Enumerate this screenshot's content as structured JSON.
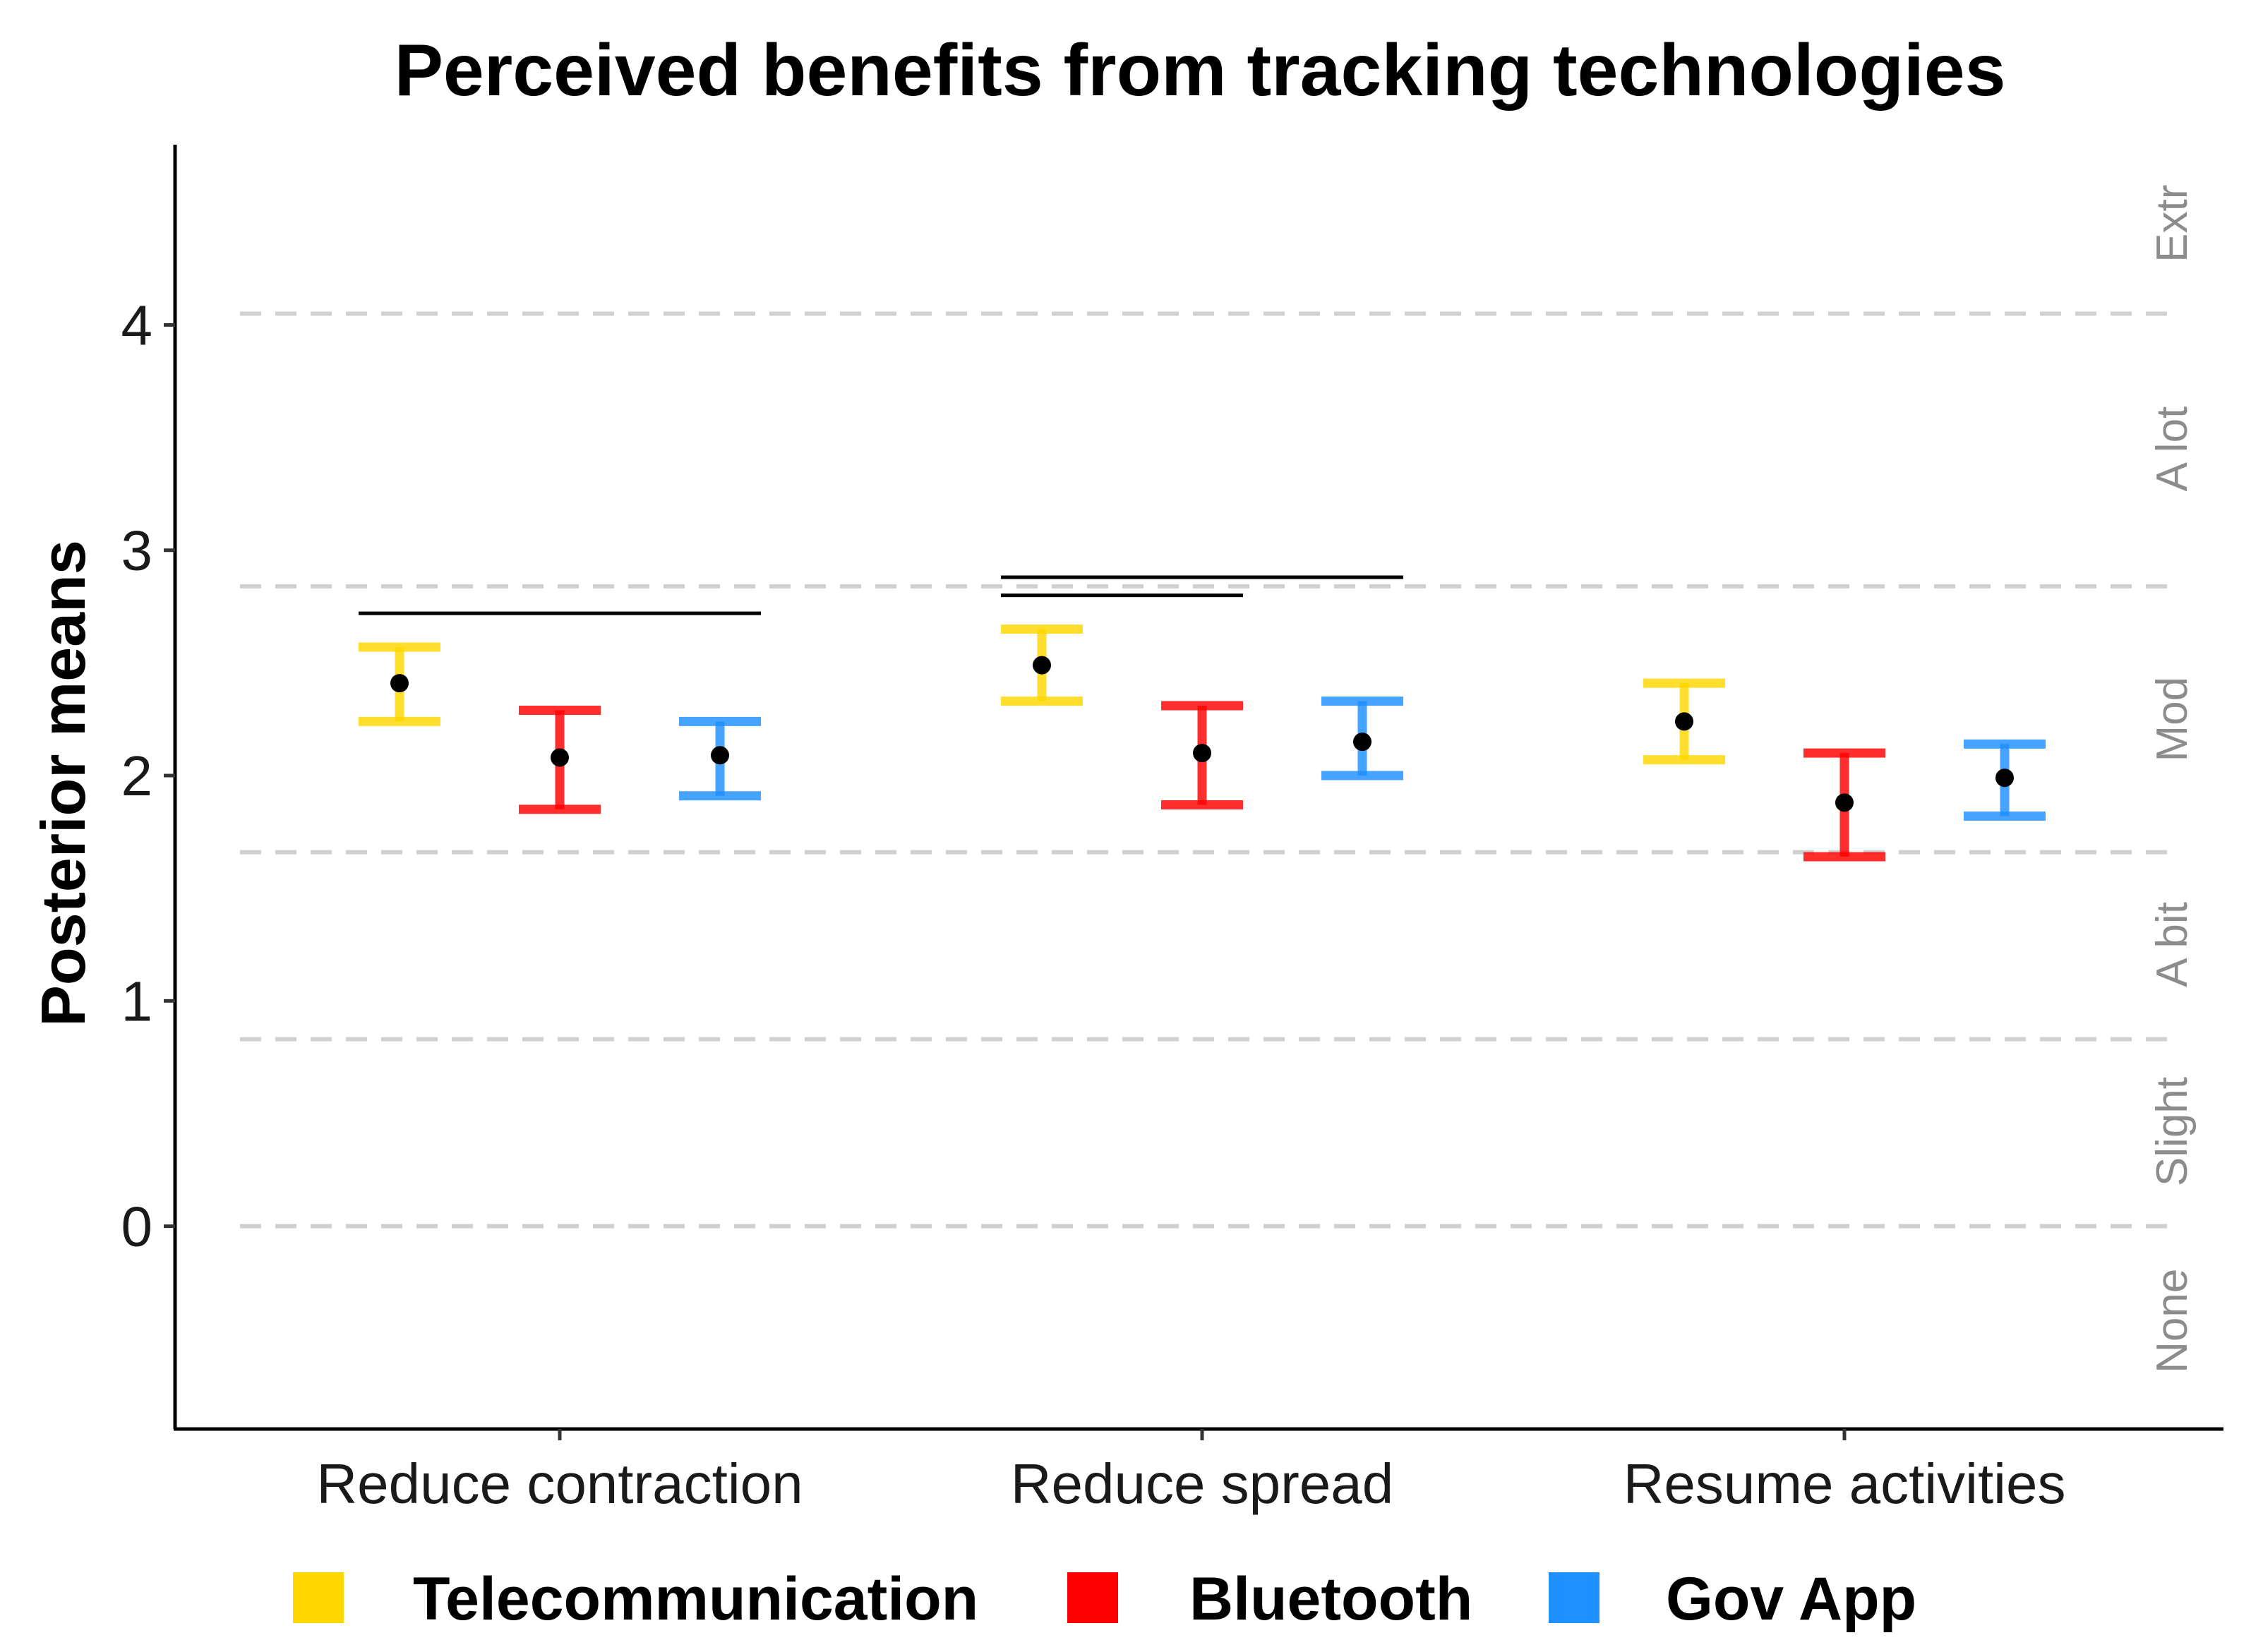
{
  "chart_data": {
    "type": "errorbar",
    "title": "Perceived benefits from tracking technologies",
    "xlabel": "",
    "ylabel": "Posterior means",
    "ylim": [
      -0.9,
      4.8
    ],
    "yticks": [
      "0",
      "1",
      "2",
      "3",
      "4"
    ],
    "categories": [
      "Reduce contraction",
      "Reduce spread",
      "Resume activities"
    ],
    "series": [
      {
        "name": "Telecommunication",
        "color": "#FFD700",
        "means": [
          2.41,
          2.49,
          2.24
        ],
        "lower": [
          2.24,
          2.33,
          2.07
        ],
        "upper": [
          2.57,
          2.65,
          2.41
        ]
      },
      {
        "name": "Bluetooth",
        "color": "#FF0000",
        "means": [
          2.08,
          2.1,
          1.88
        ],
        "lower": [
          1.85,
          1.87,
          1.64
        ],
        "upper": [
          2.29,
          2.31,
          2.1
        ]
      },
      {
        "name": "Gov App",
        "color": "#1E90FF",
        "means": [
          2.09,
          2.15,
          1.99
        ],
        "lower": [
          1.91,
          2.0,
          1.82
        ],
        "upper": [
          2.24,
          2.33,
          2.14
        ]
      }
    ],
    "threshold_lines": [
      0.0,
      0.83,
      1.66,
      2.84,
      4.05
    ],
    "bands": [
      {
        "label": "None",
        "center": -0.42
      },
      {
        "label": "Slight",
        "center": 0.42
      },
      {
        "label": "A bit",
        "center": 1.25
      },
      {
        "label": "Mod",
        "center": 2.25
      },
      {
        "label": "A lot",
        "center": 3.45
      },
      {
        "label": "Extr",
        "center": 4.45
      }
    ],
    "significance_brackets": [
      {
        "category": 0,
        "from_series": 0,
        "to_series": 2,
        "y": 2.72
      },
      {
        "category": 1,
        "from_series": 0,
        "to_series": 1,
        "y": 2.8
      },
      {
        "category": 1,
        "from_series": 0,
        "to_series": 2,
        "y": 2.88
      }
    ],
    "legend_position": "bottom"
  }
}
